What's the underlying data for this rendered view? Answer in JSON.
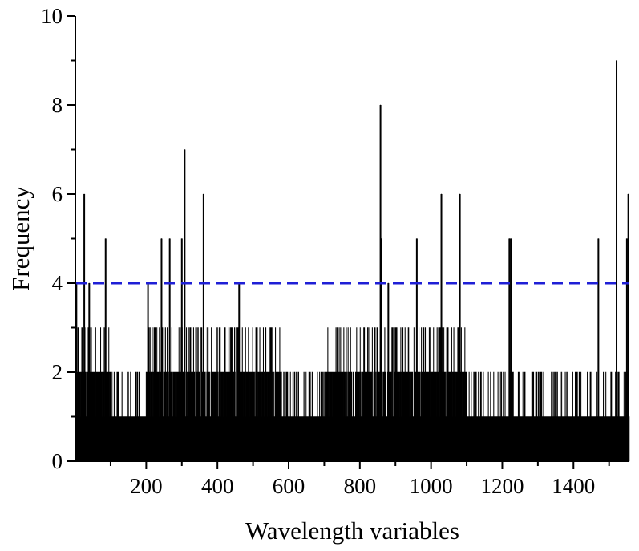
{
  "chart_data": {
    "type": "bar",
    "xlabel": "Wavelength variables",
    "ylabel": "Frequency",
    "xlim": [
      1,
      1557
    ],
    "ylim": [
      0,
      10
    ],
    "x_ticks": [
      200,
      400,
      600,
      800,
      1000,
      1200,
      1400
    ],
    "y_ticks": [
      0,
      2,
      4,
      6,
      8,
      10
    ],
    "x_tick_labels": [
      "200",
      "400",
      "600",
      "800",
      "1000",
      "1200",
      "1400"
    ],
    "y_tick_labels": [
      "0",
      "2",
      "4",
      "6",
      "8",
      "10"
    ],
    "grid": false,
    "legend": "none",
    "bar_color": "#000000",
    "threshold": {
      "value": 4,
      "color": "#1f1fd6",
      "style": "dashed"
    },
    "peaks": [
      {
        "x": 4,
        "y": 4
      },
      {
        "x": 26,
        "y": 6
      },
      {
        "x": 40,
        "y": 4
      },
      {
        "x": 86,
        "y": 5
      },
      {
        "x": 205,
        "y": 4
      },
      {
        "x": 243,
        "y": 5
      },
      {
        "x": 266,
        "y": 5
      },
      {
        "x": 300,
        "y": 5
      },
      {
        "x": 308,
        "y": 7
      },
      {
        "x": 361,
        "y": 6
      },
      {
        "x": 461,
        "y": 4
      },
      {
        "x": 858,
        "y": 8
      },
      {
        "x": 861,
        "y": 5
      },
      {
        "x": 880,
        "y": 4
      },
      {
        "x": 960,
        "y": 5
      },
      {
        "x": 1029,
        "y": 6
      },
      {
        "x": 1081,
        "y": 6
      },
      {
        "x": 1220,
        "y": 5
      },
      {
        "x": 1224,
        "y": 5
      },
      {
        "x": 1470,
        "y": 5
      },
      {
        "x": 1521,
        "y": 9
      },
      {
        "x": 1550,
        "y": 5
      },
      {
        "x": 1554,
        "y": 6
      }
    ],
    "regions": [
      {
        "from": 1,
        "to": 100,
        "base": 2,
        "high": 3
      },
      {
        "from": 100,
        "to": 200,
        "base": 1,
        "high": 2
      },
      {
        "from": 200,
        "to": 340,
        "base": 2,
        "high": 3
      },
      {
        "from": 340,
        "to": 580,
        "base": 2,
        "high": 3
      },
      {
        "from": 580,
        "to": 700,
        "base": 1,
        "high": 2
      },
      {
        "from": 700,
        "to": 1100,
        "base": 2,
        "high": 3
      },
      {
        "from": 1100,
        "to": 1250,
        "base": 1,
        "high": 2
      },
      {
        "from": 1250,
        "to": 1400,
        "base": 1,
        "high": 2
      },
      {
        "from": 1400,
        "to": 1557,
        "base": 1,
        "high": 2
      }
    ]
  }
}
